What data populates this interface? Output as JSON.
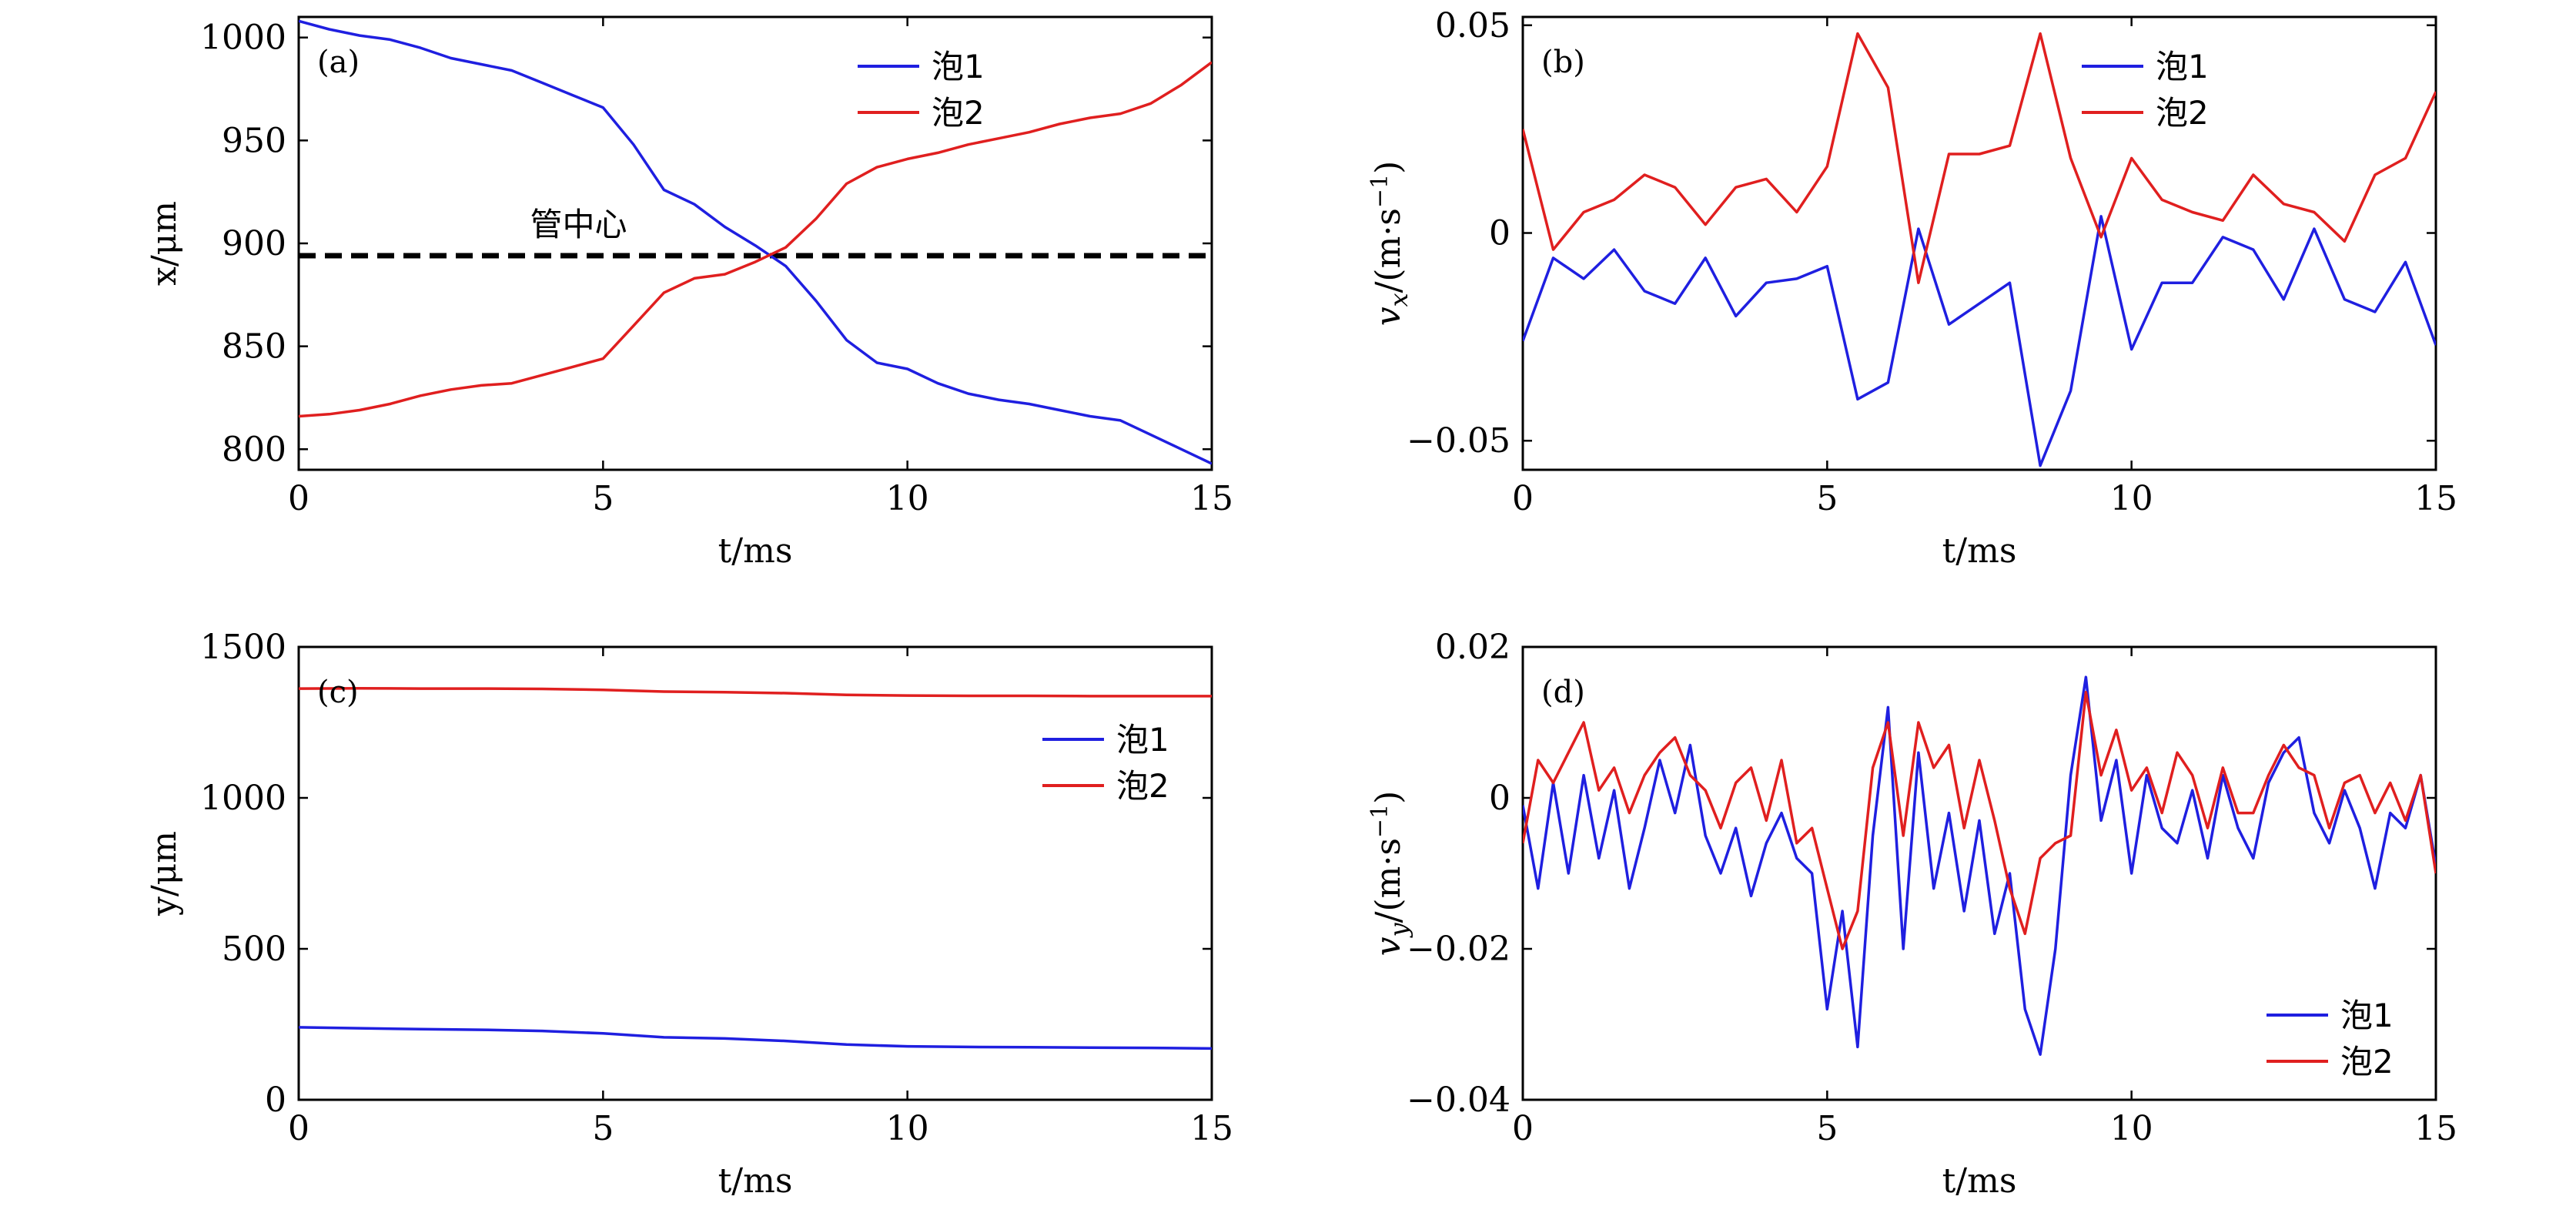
{
  "chart_data": [
    {
      "type": "line",
      "panel": "(a)",
      "xlabel": "t/ms",
      "ylabel": "x/μm",
      "xlim": [
        0,
        15
      ],
      "ylim": [
        790,
        1010
      ],
      "xticks": [
        0,
        5,
        10,
        15
      ],
      "yticks": [
        800,
        850,
        900,
        950,
        1000
      ],
      "legend_position": "top-right",
      "annotation": "管中心",
      "reference_line": {
        "y": 894,
        "style": "dashed",
        "color": "#000000"
      },
      "series": [
        {
          "name": "泡1",
          "color": "#1f1fe0",
          "x": [
            0,
            0.5,
            1,
            1.5,
            2,
            2.5,
            3,
            3.5,
            4,
            4.5,
            5,
            5.5,
            6,
            6.5,
            7,
            7.5,
            8,
            8.5,
            9,
            9.5,
            10,
            10.5,
            11,
            11.5,
            12,
            12.5,
            13,
            13.5,
            14,
            14.5,
            15
          ],
          "y": [
            1008,
            1004,
            1001,
            999,
            995,
            990,
            987,
            984,
            978,
            972,
            966,
            948,
            926,
            919,
            908,
            899,
            889,
            872,
            853,
            842,
            839,
            832,
            827,
            824,
            822,
            819,
            816,
            814,
            807,
            800,
            793
          ]
        },
        {
          "name": "泡2",
          "color": "#e01f1f",
          "x": [
            0,
            0.5,
            1,
            1.5,
            2,
            2.5,
            3,
            3.5,
            4,
            4.5,
            5,
            5.5,
            6,
            6.5,
            7,
            7.5,
            8,
            8.5,
            9,
            9.5,
            10,
            10.5,
            11,
            11.5,
            12,
            12.5,
            13,
            13.5,
            14,
            14.5,
            15
          ],
          "y": [
            816,
            817,
            819,
            822,
            826,
            829,
            831,
            832,
            836,
            840,
            844,
            860,
            876,
            883,
            885,
            891,
            898,
            912,
            929,
            937,
            941,
            944,
            948,
            951,
            954,
            958,
            961,
            963,
            968,
            977,
            988
          ]
        }
      ]
    },
    {
      "type": "line",
      "panel": "(b)",
      "xlabel": "t/ms",
      "ylabel": "v_x/(m·s⁻¹)",
      "ylabel_base": "v",
      "ylabel_sub": "x",
      "ylabel_unit": "/(m·s",
      "ylabel_sup": "−1",
      "ylabel_close": ")",
      "xlim": [
        0,
        15
      ],
      "ylim": [
        -0.057,
        0.052
      ],
      "xticks": [
        0,
        5,
        10,
        15
      ],
      "yticks": [
        -0.05,
        0,
        0.05
      ],
      "ytick_labels": [
        "−0.05",
        "0",
        "0.05"
      ],
      "legend_position": "top-right",
      "series": [
        {
          "name": "泡1",
          "color": "#1f1fe0",
          "x": [
            0,
            0.5,
            1,
            1.5,
            2,
            2.5,
            3,
            3.5,
            4,
            4.5,
            5,
            5.5,
            6,
            6.5,
            7,
            7.5,
            8,
            8.5,
            9,
            9.5,
            10,
            10.5,
            11,
            11.5,
            12,
            12.5,
            13,
            13.5,
            14,
            14.5,
            15
          ],
          "y": [
            -0.026,
            -0.006,
            -0.011,
            -0.004,
            -0.014,
            -0.017,
            -0.006,
            -0.02,
            -0.012,
            -0.011,
            -0.008,
            -0.04,
            -0.036,
            0.001,
            -0.022,
            -0.017,
            -0.012,
            -0.056,
            -0.038,
            0.004,
            -0.028,
            -0.012,
            -0.012,
            -0.001,
            -0.004,
            -0.016,
            0.001,
            -0.016,
            -0.019,
            -0.007,
            -0.027
          ]
        },
        {
          "name": "泡2",
          "color": "#e01f1f",
          "x": [
            0,
            0.5,
            1,
            1.5,
            2,
            2.5,
            3,
            3.5,
            4,
            4.5,
            5,
            5.5,
            6,
            6.5,
            7,
            7.5,
            8,
            8.5,
            9,
            9.5,
            10,
            10.5,
            11,
            11.5,
            12,
            12.5,
            13,
            13.5,
            14,
            14.5,
            15
          ],
          "y": [
            0.025,
            -0.004,
            0.005,
            0.008,
            0.014,
            0.011,
            0.002,
            0.011,
            0.013,
            0.005,
            0.016,
            0.048,
            0.035,
            -0.012,
            0.019,
            0.019,
            0.021,
            0.048,
            0.018,
            -0.001,
            0.018,
            0.008,
            0.005,
            0.003,
            0.014,
            0.007,
            0.005,
            -0.002,
            0.014,
            0.018,
            0.034
          ]
        }
      ]
    },
    {
      "type": "line",
      "panel": "(c)",
      "xlabel": "t/ms",
      "ylabel": "y/μm",
      "xlim": [
        0,
        15
      ],
      "ylim": [
        0,
        1500
      ],
      "xticks": [
        0,
        5,
        10,
        15
      ],
      "yticks": [
        0,
        500,
        1000,
        1500
      ],
      "legend_position": "upper-right",
      "series": [
        {
          "name": "泡1",
          "color": "#1f1fe0",
          "x": [
            0,
            1,
            2,
            3,
            4,
            5,
            6,
            7,
            8,
            9,
            10,
            11,
            12,
            13,
            14,
            15
          ],
          "y": [
            240,
            237,
            234,
            232,
            228,
            220,
            207,
            203,
            195,
            183,
            177,
            175,
            174,
            173,
            172,
            170
          ]
        },
        {
          "name": "泡2",
          "color": "#e01f1f",
          "x": [
            0,
            1,
            2,
            3,
            4,
            5,
            6,
            7,
            8,
            9,
            10,
            11,
            12,
            13,
            14,
            15
          ],
          "y": [
            1362,
            1363,
            1362,
            1362,
            1361,
            1358,
            1352,
            1350,
            1347,
            1341,
            1339,
            1338,
            1338,
            1337,
            1337,
            1337
          ]
        }
      ]
    },
    {
      "type": "line",
      "panel": "(d)",
      "xlabel": "t/ms",
      "ylabel": "v_y/(m·s⁻¹)",
      "ylabel_base": "v",
      "ylabel_sub": "y",
      "ylabel_unit": "/(m·s",
      "ylabel_sup": "−1",
      "ylabel_close": ")",
      "xlim": [
        0,
        15
      ],
      "ylim": [
        -0.04,
        0.02
      ],
      "xticks": [
        0,
        5,
        10,
        15
      ],
      "yticks": [
        -0.04,
        -0.02,
        0,
        0.02
      ],
      "ytick_labels": [
        "−0.04",
        "−0.02",
        "0",
        "0.02"
      ],
      "legend_position": "bottom-right",
      "series": [
        {
          "name": "泡1",
          "color": "#1f1fe0",
          "x": [
            0,
            0.25,
            0.5,
            0.75,
            1,
            1.25,
            1.5,
            1.75,
            2,
            2.25,
            2.5,
            2.75,
            3,
            3.25,
            3.5,
            3.75,
            4,
            4.25,
            4.5,
            4.75,
            5,
            5.25,
            5.5,
            5.75,
            6,
            6.25,
            6.5,
            6.75,
            7,
            7.25,
            7.5,
            7.75,
            8,
            8.25,
            8.5,
            8.75,
            9,
            9.25,
            9.5,
            9.75,
            10,
            10.25,
            10.5,
            10.75,
            11,
            11.25,
            11.5,
            11.75,
            12,
            12.25,
            12.5,
            12.75,
            13,
            13.25,
            13.5,
            13.75,
            14,
            14.25,
            14.5,
            14.75,
            15
          ],
          "y": [
            -0.001,
            -0.012,
            0.002,
            -0.01,
            0.003,
            -0.008,
            0.001,
            -0.012,
            -0.004,
            0.005,
            -0.002,
            0.007,
            -0.005,
            -0.01,
            -0.004,
            -0.013,
            -0.006,
            -0.002,
            -0.008,
            -0.01,
            -0.028,
            -0.015,
            -0.033,
            -0.005,
            0.012,
            -0.02,
            0.006,
            -0.012,
            -0.002,
            -0.015,
            -0.003,
            -0.018,
            -0.01,
            -0.028,
            -0.034,
            -0.02,
            0.003,
            0.016,
            -0.003,
            0.005,
            -0.01,
            0.003,
            -0.004,
            -0.006,
            0.001,
            -0.008,
            0.003,
            -0.004,
            -0.008,
            0.002,
            0.006,
            0.008,
            -0.002,
            -0.006,
            0.001,
            -0.004,
            -0.012,
            -0.002,
            -0.004,
            0.003,
            -0.009
          ]
        },
        {
          "name": "泡2",
          "color": "#e01f1f",
          "x": [
            0,
            0.25,
            0.5,
            0.75,
            1,
            1.25,
            1.5,
            1.75,
            2,
            2.25,
            2.5,
            2.75,
            3,
            3.25,
            3.5,
            3.75,
            4,
            4.25,
            4.5,
            4.75,
            5,
            5.25,
            5.5,
            5.75,
            6,
            6.25,
            6.5,
            6.75,
            7,
            7.25,
            7.5,
            7.75,
            8,
            8.25,
            8.5,
            8.75,
            9,
            9.25,
            9.5,
            9.75,
            10,
            10.25,
            10.5,
            10.75,
            11,
            11.25,
            11.5,
            11.75,
            12,
            12.25,
            12.5,
            12.75,
            13,
            13.25,
            13.5,
            13.75,
            14,
            14.25,
            14.5,
            14.75,
            15
          ],
          "y": [
            -0.006,
            0.005,
            0.002,
            0.006,
            0.01,
            0.001,
            0.004,
            -0.002,
            0.003,
            0.006,
            0.008,
            0.003,
            0.001,
            -0.004,
            0.002,
            0.004,
            -0.003,
            0.005,
            -0.006,
            -0.004,
            -0.012,
            -0.02,
            -0.015,
            0.004,
            0.01,
            -0.005,
            0.01,
            0.004,
            0.007,
            -0.004,
            0.005,
            -0.003,
            -0.012,
            -0.018,
            -0.008,
            -0.006,
            -0.005,
            0.014,
            0.003,
            0.009,
            0.001,
            0.004,
            -0.002,
            0.006,
            0.003,
            -0.004,
            0.004,
            -0.002,
            -0.002,
            0.003,
            0.007,
            0.004,
            0.003,
            -0.004,
            0.002,
            0.003,
            -0.002,
            0.002,
            -0.003,
            0.003,
            -0.01
          ]
        }
      ]
    }
  ]
}
